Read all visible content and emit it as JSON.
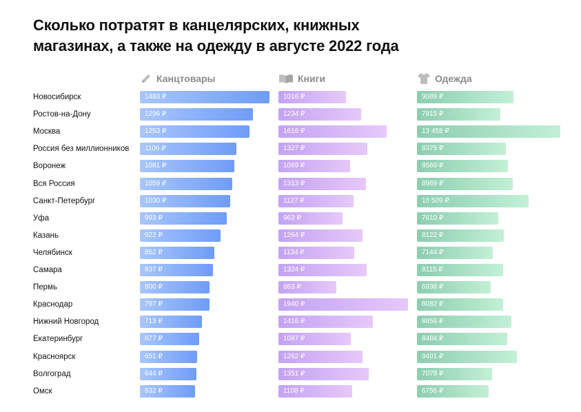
{
  "title_lines": [
    "Сколько потратят в канцелярских, книжных",
    "магазинах, а также на одежду в августе 2022 года"
  ],
  "chart_data": {
    "type": "bar",
    "orientation": "horizontal",
    "title": "Сколько потратят в канцелярских, книжных магазинах, а также на одежду в августе 2022 года",
    "value_unit": "₽",
    "categories": [
      "Новосибирск",
      "Ростов-на-Дону",
      "Москва",
      "Россия без миллионников",
      "Воронеж",
      "Вся Россия",
      "Санкт-Петербург",
      "Уфа",
      "Казань",
      "Челябинск",
      "Самара",
      "Пермь",
      "Краснодар",
      "Нижний Новгород",
      "Екатеринбург",
      "Красноярск",
      "Волгоград",
      "Омск"
    ],
    "series": [
      {
        "name": "Канцтовары",
        "icon": "pencil-icon",
        "color_from": "#a8c6fb",
        "color_to": "#6f9cf7",
        "values": [
          1483,
          1296,
          1253,
          1106,
          1081,
          1059,
          1030,
          993,
          922,
          852,
          837,
          800,
          797,
          713,
          677,
          651,
          644,
          632
        ],
        "labels": [
          "1483 ₽",
          "1296 ₽",
          "1253 ₽",
          "1106 ₽",
          "1081 ₽",
          "1059 ₽",
          "1030 ₽",
          "993 ₽",
          "922 ₽",
          "852 ₽",
          "837 ₽",
          "800 ₽",
          "797 ₽",
          "713 ₽",
          "677 ₽",
          "651 ₽",
          "644 ₽",
          "632 ₽"
        ]
      },
      {
        "name": "Книги",
        "icon": "book-icon",
        "color_from": "#c3a2f3",
        "color_to": "#e6c8f9",
        "values": [
          1016,
          1234,
          1616,
          1327,
          1069,
          1313,
          1127,
          963,
          1264,
          1134,
          1324,
          863,
          1940,
          1416,
          1087,
          1262,
          1351,
          1108
        ],
        "labels": [
          "1016 ₽",
          "1234 ₽",
          "1616 ₽",
          "1327 ₽",
          "1069 ₽",
          "1313 ₽",
          "1127 ₽",
          "963 ₽",
          "1264 ₽",
          "1134 ₽",
          "1324 ₽",
          "863 ₽",
          "1940 ₽",
          "1416 ₽",
          "1087 ₽",
          "1262 ₽",
          "1351 ₽",
          "1108 ₽"
        ]
      },
      {
        "name": "Одежда",
        "icon": "tshirt-icon",
        "color_from": "#8ccdb0",
        "color_to": "#c2f0d5",
        "values": [
          9089,
          7815,
          13458,
          8375,
          8569,
          8969,
          10509,
          7610,
          8122,
          7144,
          8115,
          6938,
          8082,
          8856,
          8484,
          9401,
          7078,
          6756
        ],
        "labels": [
          "9089 ₽",
          "7815 ₽",
          "13 458 ₽",
          "8375 ₽",
          "8569 ₽",
          "8969 ₽",
          "10 509 ₽",
          "7610 ₽",
          "8122 ₽",
          "7144 ₽",
          "8115 ₽",
          "6938 ₽",
          "8082 ₽",
          "8856 ₽",
          "8484 ₽",
          "9401 ₽",
          "7078 ₽",
          "6756 ₽"
        ]
      }
    ],
    "grid": false,
    "legend": "top, column headers"
  }
}
